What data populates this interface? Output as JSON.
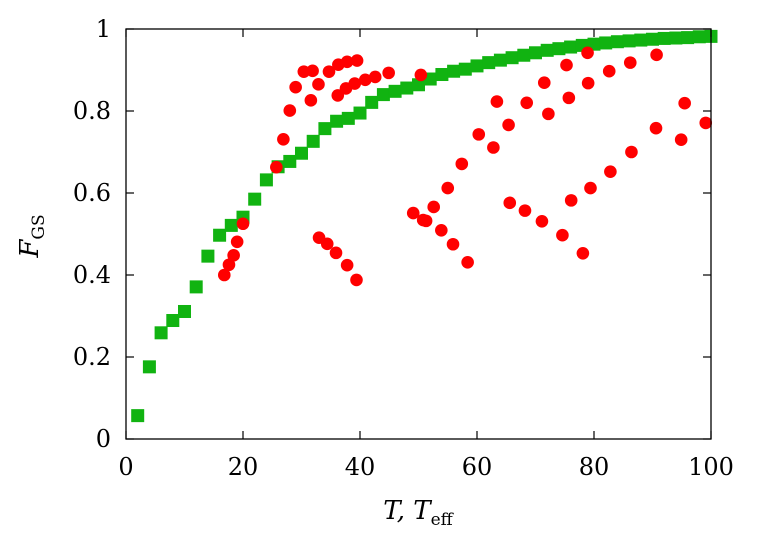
{
  "chart_data": {
    "type": "scatter",
    "title": "",
    "xlabel": {
      "main": "T, T",
      "sub": "eff"
    },
    "ylabel": {
      "main": "F",
      "sub": "GS"
    },
    "xlim": [
      0,
      100
    ],
    "ylim": [
      0,
      1
    ],
    "xticks": [
      0,
      20,
      40,
      60,
      80,
      100
    ],
    "yticks": [
      0,
      0.2,
      0.4,
      0.6,
      0.8,
      1
    ],
    "xtick_labels": [
      "0",
      "20",
      "40",
      "60",
      "80",
      "100"
    ],
    "ytick_labels": [
      "0",
      "0.2",
      "0.4",
      "0.6",
      "0.8",
      "1"
    ],
    "grid": false,
    "legend": "none",
    "series": [
      {
        "marker": "square",
        "color": "#11b311",
        "points": [
          [
            2,
            0.057
          ],
          [
            4,
            0.176
          ],
          [
            6,
            0.259
          ],
          [
            8,
            0.289
          ],
          [
            10,
            0.311
          ],
          [
            12,
            0.371
          ],
          [
            14,
            0.446
          ],
          [
            16,
            0.497
          ],
          [
            18,
            0.521
          ],
          [
            20,
            0.541
          ],
          [
            22,
            0.585
          ],
          [
            24,
            0.632
          ],
          [
            26,
            0.664
          ],
          [
            28,
            0.677
          ],
          [
            30,
            0.697
          ],
          [
            32,
            0.726
          ],
          [
            34,
            0.757
          ],
          [
            36,
            0.775
          ],
          [
            38,
            0.782
          ],
          [
            40,
            0.795
          ],
          [
            42,
            0.821
          ],
          [
            44,
            0.84
          ],
          [
            46,
            0.848
          ],
          [
            48,
            0.856
          ],
          [
            50,
            0.864
          ],
          [
            52,
            0.878
          ],
          [
            54,
            0.889
          ],
          [
            56,
            0.897
          ],
          [
            58,
            0.902
          ],
          [
            60,
            0.91
          ],
          [
            62,
            0.918
          ],
          [
            64,
            0.924
          ],
          [
            66,
            0.93
          ],
          [
            68,
            0.936
          ],
          [
            70,
            0.942
          ],
          [
            72,
            0.948
          ],
          [
            74,
            0.952
          ],
          [
            76,
            0.956
          ],
          [
            78,
            0.96
          ],
          [
            80,
            0.963
          ],
          [
            82,
            0.966
          ],
          [
            84,
            0.969
          ],
          [
            86,
            0.971
          ],
          [
            88,
            0.973
          ],
          [
            90,
            0.975
          ],
          [
            92,
            0.977
          ],
          [
            94,
            0.978
          ],
          [
            96,
            0.979
          ],
          [
            98,
            0.981
          ],
          [
            100,
            0.982
          ]
        ]
      },
      {
        "marker": "circle",
        "color": "#ff0000",
        "points": [
          [
            16.8,
            0.4
          ],
          [
            17.6,
            0.425
          ],
          [
            18.4,
            0.448
          ],
          [
            19.0,
            0.481
          ],
          [
            20.0,
            0.525
          ],
          [
            25.7,
            0.663
          ],
          [
            26.9,
            0.731
          ],
          [
            28.0,
            0.801
          ],
          [
            29.0,
            0.858
          ],
          [
            30.4,
            0.896
          ],
          [
            31.9,
            0.898
          ],
          [
            31.6,
            0.826
          ],
          [
            32.9,
            0.865
          ],
          [
            34.7,
            0.896
          ],
          [
            36.3,
            0.913
          ],
          [
            37.8,
            0.92
          ],
          [
            39.5,
            0.923
          ],
          [
            36.2,
            0.838
          ],
          [
            37.6,
            0.855
          ],
          [
            39.1,
            0.867
          ],
          [
            40.9,
            0.876
          ],
          [
            42.6,
            0.883
          ],
          [
            44.9,
            0.893
          ],
          [
            33.0,
            0.491
          ],
          [
            34.4,
            0.476
          ],
          [
            35.9,
            0.454
          ],
          [
            37.8,
            0.424
          ],
          [
            39.4,
            0.388
          ],
          [
            50.4,
            0.888
          ],
          [
            49.1,
            0.551
          ],
          [
            50.8,
            0.534
          ],
          [
            51.3,
            0.532
          ],
          [
            52.6,
            0.566
          ],
          [
            53.9,
            0.509
          ],
          [
            55.0,
            0.612
          ],
          [
            55.9,
            0.475
          ],
          [
            57.4,
            0.671
          ],
          [
            58.4,
            0.431
          ],
          [
            60.3,
            0.743
          ],
          [
            62.8,
            0.711
          ],
          [
            63.4,
            0.823
          ],
          [
            65.4,
            0.766
          ],
          [
            65.6,
            0.576
          ],
          [
            68.2,
            0.557
          ],
          [
            68.5,
            0.82
          ],
          [
            71.1,
            0.531
          ],
          [
            71.5,
            0.869
          ],
          [
            72.2,
            0.793
          ],
          [
            74.6,
            0.497
          ],
          [
            75.3,
            0.912
          ],
          [
            75.7,
            0.832
          ],
          [
            76.1,
            0.582
          ],
          [
            78.1,
            0.453
          ],
          [
            78.9,
            0.942
          ],
          [
            79.0,
            0.868
          ],
          [
            79.4,
            0.612
          ],
          [
            82.6,
            0.897
          ],
          [
            82.8,
            0.652
          ],
          [
            86.2,
            0.918
          ],
          [
            86.4,
            0.7
          ],
          [
            90.7,
            0.937
          ],
          [
            90.6,
            0.758
          ],
          [
            94.9,
            0.73
          ],
          [
            95.5,
            0.819
          ],
          [
            99.1,
            0.771
          ]
        ]
      }
    ]
  }
}
